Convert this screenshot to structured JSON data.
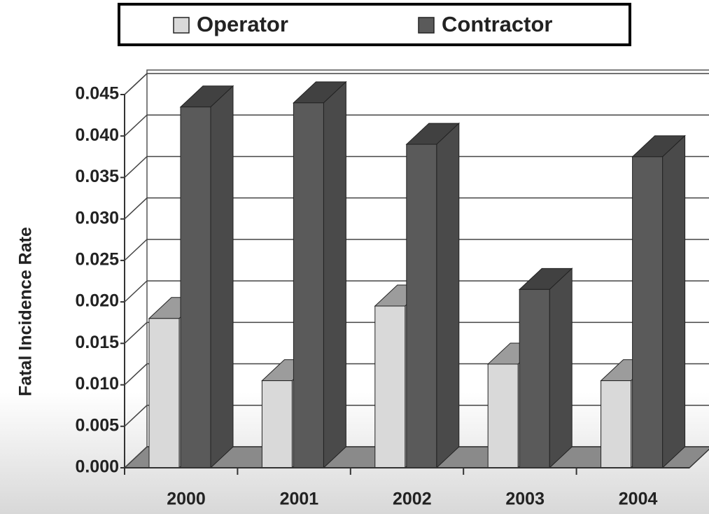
{
  "chart_data": {
    "type": "bar3d",
    "y_label": "Fatal Incidence Rate",
    "categories": [
      "2000",
      "2001",
      "2002",
      "2003",
      "2004"
    ],
    "series": [
      {
        "name": "Operator",
        "color": "#d9d9d9",
        "values": [
          0.018,
          0.0105,
          0.0195,
          0.0125,
          0.0105
        ]
      },
      {
        "name": "Contractor",
        "color": "#5a5a5a",
        "values": [
          0.0435,
          0.044,
          0.039,
          0.0215,
          0.0375
        ]
      }
    ],
    "ylim": [
      0,
      0.045
    ],
    "yticks": [
      {
        "value": 0,
        "label": "0.000"
      },
      {
        "value": 0.005,
        "label": "0.005"
      },
      {
        "value": 0.01,
        "label": "0.010"
      },
      {
        "value": 0.015,
        "label": "0.015"
      },
      {
        "value": 0.02,
        "label": "0.020"
      },
      {
        "value": 0.025,
        "label": "0.025"
      },
      {
        "value": 0.03,
        "label": "0.030"
      },
      {
        "value": 0.035,
        "label": "0.035"
      },
      {
        "value": 0.04,
        "label": "0.040"
      },
      {
        "value": 0.045,
        "label": "0.045"
      }
    ],
    "grid": true,
    "legend": "top"
  }
}
